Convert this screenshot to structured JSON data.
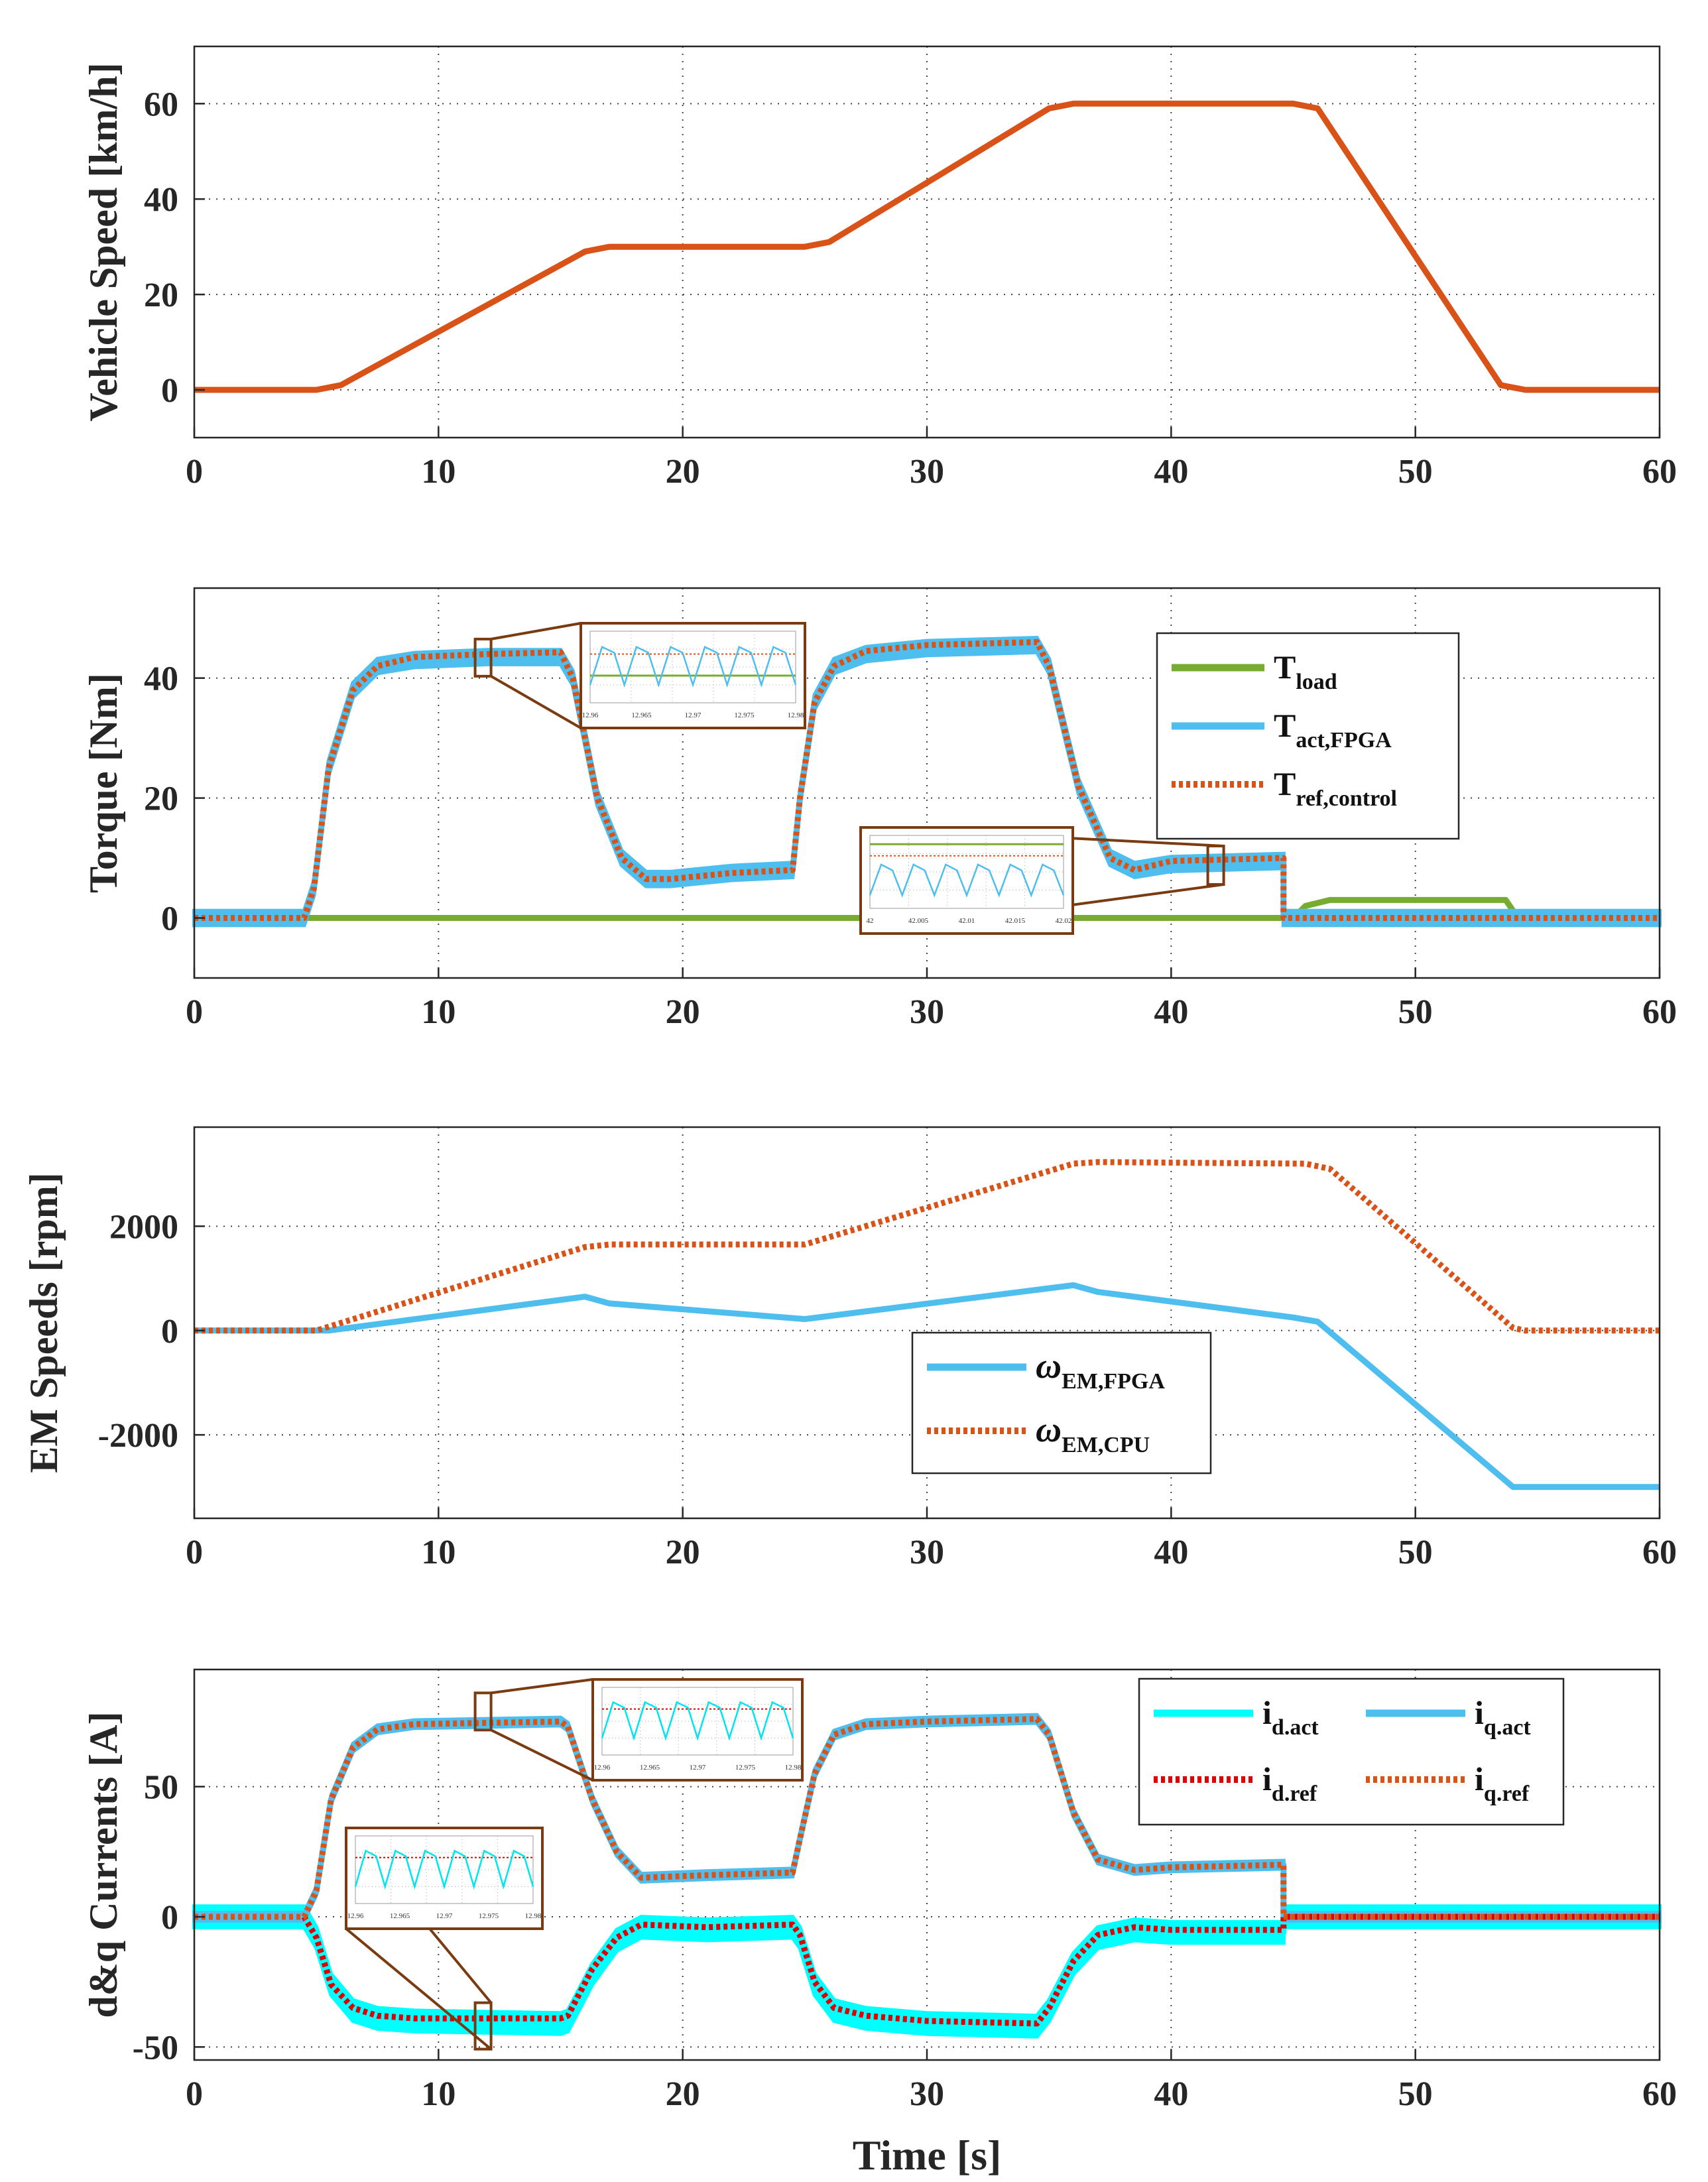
{
  "chart_data": [
    {
      "type": "line",
      "ylabel": "Vehicle Speed [km/h]",
      "xlabel": "",
      "xlim": [
        0,
        60
      ],
      "ylim": [
        -10,
        72
      ],
      "xticks": [
        0,
        10,
        20,
        30,
        40,
        50,
        60
      ],
      "yticks": [
        0,
        20,
        40,
        60
      ],
      "grid": true,
      "series": [
        {
          "name": "Vehicle Speed",
          "color": "#D95319",
          "style": "solid",
          "x": [
            0,
            5,
            6,
            16,
            17,
            25,
            26,
            35,
            36,
            45,
            46,
            53.5,
            54.5,
            60
          ],
          "y": [
            0,
            0,
            1,
            29,
            30,
            30,
            31,
            59,
            60,
            60,
            59,
            1,
            0,
            0
          ]
        }
      ]
    },
    {
      "type": "line",
      "ylabel": "Torque [Nm]",
      "xlabel": "",
      "xlim": [
        0,
        60
      ],
      "ylim": [
        -10,
        55
      ],
      "xticks": [
        0,
        10,
        20,
        30,
        40,
        50,
        60
      ],
      "yticks": [
        0,
        20,
        40
      ],
      "grid": true,
      "legend": {
        "position": "top-right",
        "entries": [
          {
            "base": "T",
            "sub": "load",
            "color": "#77AC30",
            "style": "solid"
          },
          {
            "base": "T",
            "sub": "act,FPGA",
            "color": "#4DBEEE",
            "style": "solid"
          },
          {
            "base": "T",
            "sub": "ref,control",
            "color": "#D95319",
            "style": "dotted"
          }
        ]
      },
      "series": [
        {
          "name": "T_load",
          "color": "#77AC30",
          "style": "solid",
          "x": [
            0,
            45,
            45.5,
            46.5,
            53.7,
            54.2,
            60
          ],
          "y": [
            0,
            0,
            2,
            3,
            3,
            0,
            0
          ]
        },
        {
          "name": "T_act,FPGA",
          "color": "#4DBEEE",
          "style": "solid",
          "band": 1.2,
          "x": [
            0,
            4.5,
            4.9,
            5.5,
            6.5,
            7.5,
            9,
            12,
            15,
            15.5,
            16.5,
            17.5,
            18.5,
            19.5,
            22,
            24.5,
            24.8,
            25.4,
            26.2,
            27.5,
            30,
            34.5,
            35,
            36.2,
            37.5,
            38.5,
            40,
            44.6,
            44.6,
            60
          ],
          "y": [
            0,
            0,
            5,
            25,
            38,
            42,
            43,
            43.5,
            43.5,
            40,
            20,
            10,
            6.5,
            6.5,
            7.5,
            8,
            20,
            36,
            42,
            44,
            45,
            45.5,
            42,
            22,
            10,
            8,
            9,
            9.5,
            0,
            0
          ]
        },
        {
          "name": "T_ref,control",
          "color": "#D95319",
          "style": "dotted",
          "x": [
            0,
            4.5,
            4.9,
            5.5,
            6.5,
            7.5,
            9,
            12,
            15,
            15.5,
            16.5,
            17.5,
            18.5,
            19.5,
            22,
            24.5,
            24.8,
            25.4,
            26.2,
            27.5,
            30,
            34.5,
            35,
            36.2,
            37.5,
            38.5,
            40,
            44.6,
            44.6,
            60
          ],
          "y": [
            0,
            0,
            5,
            25,
            38,
            42,
            43.5,
            44,
            44.3,
            40,
            20,
            10,
            6.5,
            6.5,
            7.5,
            8,
            20,
            36,
            42,
            44.5,
            45.5,
            46,
            42,
            22,
            10,
            8,
            9.5,
            10,
            0,
            0
          ]
        }
      ],
      "insets": [
        {
          "xticks": [
            "12.96",
            "12.965",
            "12.97",
            "12.975",
            "12.98"
          ]
        },
        {
          "xticks": [
            "42",
            "42.005",
            "42.01",
            "42.015",
            "42.02"
          ]
        }
      ]
    },
    {
      "type": "line",
      "ylabel": "EM Speeds [rpm]",
      "xlabel": "",
      "xlim": [
        0,
        60
      ],
      "ylim": [
        -3600,
        3900
      ],
      "xticks": [
        0,
        10,
        20,
        30,
        40,
        50,
        60
      ],
      "yticks": [
        -2000,
        0,
        2000
      ],
      "ytick_labels": [
        "-2000",
        "0",
        "2000"
      ],
      "grid": true,
      "legend": {
        "position": "bottom-center",
        "entries": [
          {
            "base": "ω",
            "sub": "EM,FPGA",
            "color": "#4DBEEE",
            "style": "solid"
          },
          {
            "base": "ω",
            "sub": "EM,CPU",
            "color": "#D95319",
            "style": "dotted"
          }
        ]
      },
      "series": [
        {
          "name": "ω_EM,FPGA",
          "color": "#4DBEEE",
          "style": "solid",
          "x": [
            0,
            5,
            5.5,
            16,
            17,
            25,
            36,
            37,
            45,
            46,
            54,
            60
          ],
          "y": [
            0,
            0,
            0,
            650,
            520,
            220,
            870,
            740,
            250,
            170,
            -3000,
            -3000
          ]
        },
        {
          "name": "ω_EM,CPU",
          "color": "#D95319",
          "style": "dotted",
          "x": [
            0,
            5,
            16,
            17,
            25,
            36,
            37,
            45.5,
            46.5,
            54,
            54.5,
            60
          ],
          "y": [
            0,
            0,
            1600,
            1650,
            1650,
            3200,
            3230,
            3200,
            3100,
            50,
            0,
            0
          ]
        }
      ]
    },
    {
      "type": "line",
      "ylabel": "d&q Currents [A]",
      "xlabel": "Time [s]",
      "xlim": [
        0,
        60
      ],
      "ylim": [
        -55,
        95
      ],
      "xticks": [
        0,
        10,
        20,
        30,
        40,
        50,
        60
      ],
      "yticks": [
        -50,
        0,
        50
      ],
      "ytick_labels": [
        "-50",
        "0",
        "50"
      ],
      "grid": true,
      "legend": {
        "position": "top-right",
        "entries": [
          {
            "base": "i",
            "sub": "d.act",
            "color": "#00FFFF",
            "style": "solid"
          },
          {
            "base": "i",
            "sub": "q.act",
            "color": "#4DBEEE",
            "style": "solid"
          },
          {
            "base": "i",
            "sub": "d.ref",
            "color": "#E00000",
            "style": "dotted"
          },
          {
            "base": "i",
            "sub": "q.ref",
            "color": "#D95319",
            "style": "dotted"
          }
        ]
      },
      "series": [
        {
          "name": "i_d.act",
          "color": "#00FFFF",
          "style": "solid",
          "band": 4,
          "x": [
            0,
            4.5,
            5,
            5.6,
            6.5,
            7.5,
            9,
            15,
            15.3,
            16.3,
            17.3,
            18.3,
            21,
            24.5,
            24.8,
            25.4,
            26.2,
            27.5,
            30,
            34.5,
            35,
            36,
            37,
            38.5,
            40,
            44.6,
            44.6,
            60
          ],
          "y": [
            0,
            0,
            -8,
            -26,
            -36,
            -39,
            -40,
            -41,
            -40,
            -22,
            -9,
            -4,
            -5,
            -4,
            -8,
            -26,
            -36,
            -39,
            -41,
            -42,
            -36,
            -18,
            -8,
            -5,
            -6,
            -6,
            0,
            0
          ]
        },
        {
          "name": "i_q.act",
          "color": "#4DBEEE",
          "style": "solid",
          "band": 1.5,
          "x": [
            0,
            4.5,
            5,
            5.6,
            6.5,
            7.5,
            9,
            15,
            15.3,
            16.3,
            17.3,
            18.3,
            21,
            24.5,
            24.8,
            25.4,
            26.2,
            27.5,
            30,
            34.5,
            35,
            36,
            37,
            38.5,
            40,
            44.6,
            44.6,
            60
          ],
          "y": [
            0,
            0,
            10,
            45,
            65,
            72,
            74,
            75,
            73,
            45,
            25,
            15,
            16,
            17,
            30,
            55,
            70,
            74,
            75,
            76,
            70,
            40,
            22,
            18,
            19,
            20,
            0,
            0
          ]
        },
        {
          "name": "i_d.ref",
          "color": "#E00000",
          "style": "dotted",
          "x": [
            0,
            4.5,
            5,
            5.6,
            6.5,
            7.5,
            9,
            15,
            15.3,
            16.3,
            17.3,
            18.3,
            21,
            24.5,
            24.8,
            25.4,
            26.2,
            27.5,
            30,
            34.5,
            35,
            36,
            37,
            38.5,
            40,
            44.6,
            44.6,
            60
          ],
          "y": [
            0,
            0,
            -8,
            -26,
            -35,
            -38,
            -39,
            -39,
            -38,
            -20,
            -8,
            -3,
            -4,
            -3,
            -7,
            -25,
            -35,
            -38,
            -40,
            -41,
            -35,
            -17,
            -7,
            -4,
            -5,
            -5,
            0,
            0
          ]
        },
        {
          "name": "i_q.ref",
          "color": "#D95319",
          "style": "dotted",
          "x": [
            0,
            4.5,
            5,
            5.6,
            6.5,
            7.5,
            9,
            15,
            15.3,
            16.3,
            17.3,
            18.3,
            21,
            24.5,
            24.8,
            25.4,
            26.2,
            27.5,
            30,
            34.5,
            35,
            36,
            37,
            38.5,
            40,
            44.6,
            44.6,
            60
          ],
          "y": [
            0,
            0,
            10,
            45,
            65,
            72,
            74,
            75,
            73,
            45,
            25,
            15,
            16,
            17,
            30,
            55,
            70,
            74,
            75,
            76,
            70,
            40,
            22,
            18,
            19,
            20,
            0,
            0
          ]
        }
      ],
      "insets": [
        {
          "xticks": [
            "12.96",
            "12.965",
            "12.97",
            "12.975",
            "12.98"
          ]
        },
        {
          "xticks": [
            "12.96",
            "12.965",
            "12.97",
            "12.975",
            "12.98"
          ]
        }
      ]
    }
  ]
}
